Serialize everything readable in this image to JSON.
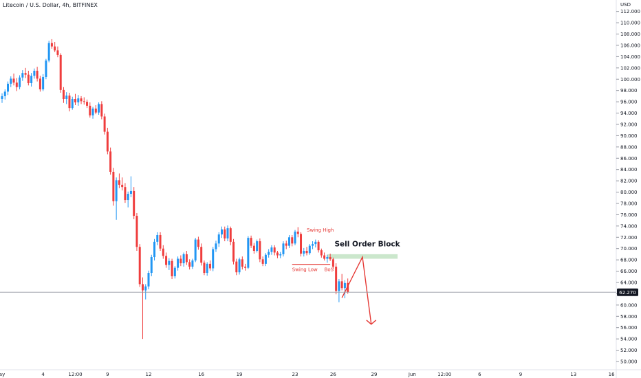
{
  "header": {
    "title": "Litecoin / U.S. Dollar, 4h, BITFINEX"
  },
  "price_axis": {
    "currency": "USD"
  },
  "chart_data": {
    "type": "candlestick",
    "title": "Litecoin / U.S. Dollar, 4h, BITFINEX",
    "ylabel": "USD",
    "ylim": [
      49,
      113
    ],
    "y_ticks": [
      50,
      52,
      54,
      56,
      58,
      60,
      62,
      64,
      66,
      68,
      70,
      72,
      74,
      76,
      78,
      80,
      82,
      84,
      86,
      88,
      90,
      92,
      94,
      96,
      98,
      100,
      102,
      104,
      106,
      108,
      110,
      112
    ],
    "x_ticks": [
      {
        "label": "ay",
        "slot": 0
      },
      {
        "label": "4",
        "slot": 14
      },
      {
        "label": "12:00",
        "slot": 25
      },
      {
        "label": "9",
        "slot": 36
      },
      {
        "label": "12",
        "slot": 50
      },
      {
        "label": "16",
        "slot": 68
      },
      {
        "label": "19",
        "slot": 81
      },
      {
        "label": "23",
        "slot": 100
      },
      {
        "label": "26",
        "slot": 113
      },
      {
        "label": "29",
        "slot": 127
      },
      {
        "label": "Jun",
        "slot": 140
      },
      {
        "label": "12:00",
        "slot": 151
      },
      {
        "label": "6",
        "slot": 163
      },
      {
        "label": "9",
        "slot": 177
      },
      {
        "label": "13",
        "slot": 195
      },
      {
        "label": "16",
        "slot": 208
      }
    ],
    "last_price": 62.27,
    "last_price_label": "62.270",
    "up_color": "#2196f3",
    "down_color": "#ef3d3d",
    "candles": [
      [
        96.5,
        97.5,
        95.8,
        97.0
      ],
      [
        97.0,
        98.2,
        96.4,
        97.8
      ],
      [
        97.8,
        99.6,
        97.2,
        99.2
      ],
      [
        99.2,
        100.5,
        98.6,
        100.1
      ],
      [
        100.1,
        101.0,
        98.9,
        99.4
      ],
      [
        99.4,
        100.2,
        97.9,
        98.6
      ],
      [
        98.6,
        100.7,
        98.2,
        100.3
      ],
      [
        100.3,
        101.6,
        99.7,
        101.1
      ],
      [
        101.1,
        102.0,
        100.2,
        100.8
      ],
      [
        100.8,
        101.5,
        98.9,
        99.3
      ],
      [
        99.3,
        101.1,
        98.7,
        100.6
      ],
      [
        100.6,
        101.9,
        100.1,
        101.5
      ],
      [
        101.5,
        102.2,
        99.6,
        100.1
      ],
      [
        100.1,
        100.6,
        97.8,
        98.2
      ],
      [
        98.2,
        100.9,
        97.9,
        100.4
      ],
      [
        100.4,
        103.6,
        100.0,
        103.3
      ],
      [
        103.3,
        106.8,
        103.0,
        106.4
      ],
      [
        106.4,
        107.1,
        105.4,
        105.8
      ],
      [
        105.8,
        106.6,
        104.8,
        105.1
      ],
      [
        105.1,
        105.8,
        103.9,
        104.3
      ],
      [
        104.3,
        104.6,
        97.6,
        98.1
      ],
      [
        98.1,
        98.6,
        95.8,
        96.5
      ],
      [
        96.5,
        97.7,
        95.6,
        97.1
      ],
      [
        97.1,
        97.6,
        94.3,
        94.9
      ],
      [
        94.9,
        96.9,
        94.6,
        96.5
      ],
      [
        96.5,
        97.4,
        95.4,
        95.9
      ],
      [
        95.9,
        97.2,
        95.3,
        96.6
      ],
      [
        96.6,
        97.0,
        95.6,
        96.1
      ],
      [
        96.1,
        96.8,
        95.5,
        96.0
      ],
      [
        96.0,
        96.4,
        94.9,
        95.3
      ],
      [
        95.3,
        95.9,
        93.2,
        93.6
      ],
      [
        93.6,
        95.1,
        93.0,
        94.8
      ],
      [
        94.8,
        95.4,
        93.8,
        94.1
      ],
      [
        94.1,
        95.9,
        93.7,
        95.6
      ],
      [
        95.6,
        96.1,
        92.9,
        93.4
      ],
      [
        93.4,
        93.9,
        90.2,
        90.7
      ],
      [
        90.7,
        91.4,
        86.7,
        87.2
      ],
      [
        87.2,
        87.9,
        83.1,
        83.6
      ],
      [
        83.6,
        84.3,
        77.6,
        78.4
      ],
      [
        78.4,
        82.6,
        75.1,
        82.1
      ],
      [
        82.1,
        83.3,
        80.7,
        81.3
      ],
      [
        81.3,
        82.6,
        80.3,
        80.9
      ],
      [
        80.9,
        81.6,
        78.1,
        78.6
      ],
      [
        78.6,
        80.1,
        77.3,
        79.7
      ],
      [
        79.7,
        82.8,
        79.1,
        80.2
      ],
      [
        80.2,
        80.9,
        75.2,
        75.8
      ],
      [
        75.8,
        76.3,
        69.6,
        70.3
      ],
      [
        70.3,
        70.8,
        63.2,
        63.7
      ],
      [
        63.7,
        64.9,
        54.0,
        62.6
      ],
      [
        62.6,
        63.7,
        61.0,
        63.3
      ],
      [
        63.3,
        66.1,
        62.8,
        65.7
      ],
      [
        65.7,
        68.9,
        65.1,
        68.5
      ],
      [
        68.5,
        71.7,
        67.9,
        71.2
      ],
      [
        71.2,
        72.9,
        70.6,
        72.4
      ],
      [
        72.4,
        72.9,
        69.6,
        70.0
      ],
      [
        70.0,
        70.6,
        68.2,
        68.7
      ],
      [
        68.7,
        69.3,
        66.6,
        67.1
      ],
      [
        67.1,
        68.3,
        66.2,
        67.8
      ],
      [
        67.8,
        68.2,
        64.6,
        65.1
      ],
      [
        65.1,
        66.9,
        64.7,
        66.6
      ],
      [
        66.6,
        68.6,
        66.1,
        68.2
      ],
      [
        68.2,
        68.8,
        66.9,
        67.4
      ],
      [
        67.4,
        69.3,
        66.8,
        69.0
      ],
      [
        69.0,
        69.6,
        67.1,
        67.6
      ],
      [
        67.6,
        68.1,
        66.3,
        66.8
      ],
      [
        66.8,
        68.2,
        66.4,
        67.9
      ],
      [
        67.9,
        71.9,
        67.6,
        71.6
      ],
      [
        71.6,
        72.1,
        69.8,
        70.3
      ],
      [
        70.3,
        70.9,
        67.0,
        67.5
      ],
      [
        67.5,
        67.9,
        65.3,
        65.7
      ],
      [
        65.7,
        67.6,
        65.2,
        67.3
      ],
      [
        67.3,
        67.9,
        66.1,
        66.5
      ],
      [
        66.5,
        70.3,
        66.0,
        69.9
      ],
      [
        69.9,
        71.4,
        69.4,
        70.9
      ],
      [
        70.9,
        72.9,
        70.3,
        72.5
      ],
      [
        72.5,
        73.9,
        71.9,
        73.4
      ],
      [
        73.4,
        73.9,
        71.3,
        71.8
      ],
      [
        71.8,
        74.1,
        71.3,
        73.6
      ],
      [
        73.6,
        73.9,
        70.6,
        71.2
      ],
      [
        71.2,
        71.7,
        67.2,
        67.7
      ],
      [
        67.7,
        68.2,
        65.3,
        65.8
      ],
      [
        65.8,
        68.4,
        65.4,
        68.1
      ],
      [
        68.1,
        68.6,
        66.3,
        66.8
      ],
      [
        66.8,
        67.3,
        66.1,
        66.6
      ],
      [
        66.6,
        72.2,
        66.4,
        71.9
      ],
      [
        71.9,
        72.3,
        70.1,
        70.5
      ],
      [
        70.5,
        71.0,
        69.1,
        69.6
      ],
      [
        69.6,
        71.6,
        69.3,
        71.3
      ],
      [
        71.3,
        71.8,
        67.6,
        68.1
      ],
      [
        68.1,
        68.6,
        66.9,
        67.3
      ],
      [
        67.3,
        69.2,
        66.9,
        68.9
      ],
      [
        68.9,
        69.9,
        68.4,
        69.4
      ],
      [
        69.4,
        70.6,
        68.9,
        70.2
      ],
      [
        70.2,
        70.6,
        68.8,
        69.3
      ],
      [
        69.3,
        69.6,
        68.3,
        68.8
      ],
      [
        68.8,
        69.4,
        68.3,
        69.0
      ],
      [
        69.0,
        71.3,
        68.6,
        70.9
      ],
      [
        70.9,
        71.4,
        69.9,
        70.5
      ],
      [
        70.5,
        72.4,
        70.1,
        72.0
      ],
      [
        72.0,
        72.4,
        70.4,
        70.9
      ],
      [
        70.9,
        73.3,
        70.6,
        73.0
      ],
      [
        73.0,
        73.8,
        72.0,
        72.6
      ],
      [
        72.6,
        72.9,
        68.6,
        69.1
      ],
      [
        69.1,
        70.1,
        68.6,
        69.6
      ],
      [
        69.6,
        70.3,
        68.8,
        69.2
      ],
      [
        69.2,
        70.8,
        68.9,
        70.5
      ],
      [
        70.5,
        71.3,
        69.9,
        70.8
      ],
      [
        70.8,
        71.6,
        70.2,
        71.2
      ],
      [
        71.2,
        71.5,
        69.3,
        69.7
      ],
      [
        69.7,
        70.0,
        68.4,
        68.8
      ],
      [
        68.8,
        69.3,
        67.9,
        68.2
      ],
      [
        68.2,
        68.9,
        67.5,
        68.5
      ],
      [
        68.5,
        69.1,
        67.8,
        68.1
      ],
      [
        68.1,
        68.4,
        66.4,
        66.8
      ],
      [
        66.8,
        67.4,
        61.9,
        62.5
      ],
      [
        62.5,
        64.6,
        60.5,
        64.2
      ],
      [
        64.2,
        65.5,
        62.6,
        63.0
      ],
      [
        63.0,
        64.4,
        61.2,
        63.9
      ],
      [
        63.9,
        64.7,
        62.0,
        62.27
      ]
    ],
    "annotations": [
      {
        "label": "Swing High",
        "x_slot": 104,
        "y": 73.0,
        "color": "#e53935"
      },
      {
        "label": "Swing Low",
        "x_slot": 99,
        "y": 66.0,
        "color": "#e53935"
      },
      {
        "label": "BoS",
        "x_slot": 110,
        "y": 66.0,
        "color": "#e53935"
      },
      {
        "label": "Sell Order Block",
        "x_slot": 113.5,
        "y": 70.4,
        "color": "#131722"
      }
    ],
    "order_block": {
      "x_from": 111,
      "x_to": 135,
      "y_low": 68.2,
      "y_high": 69.0,
      "color": "#c8e6c9"
    },
    "swing_line": {
      "x_from": 99,
      "x_to": 112,
      "y": 67.2
    },
    "projection": [
      [
        116,
        61.3
      ],
      [
        123,
        68.5
      ],
      [
        126,
        56.6
      ]
    ]
  }
}
